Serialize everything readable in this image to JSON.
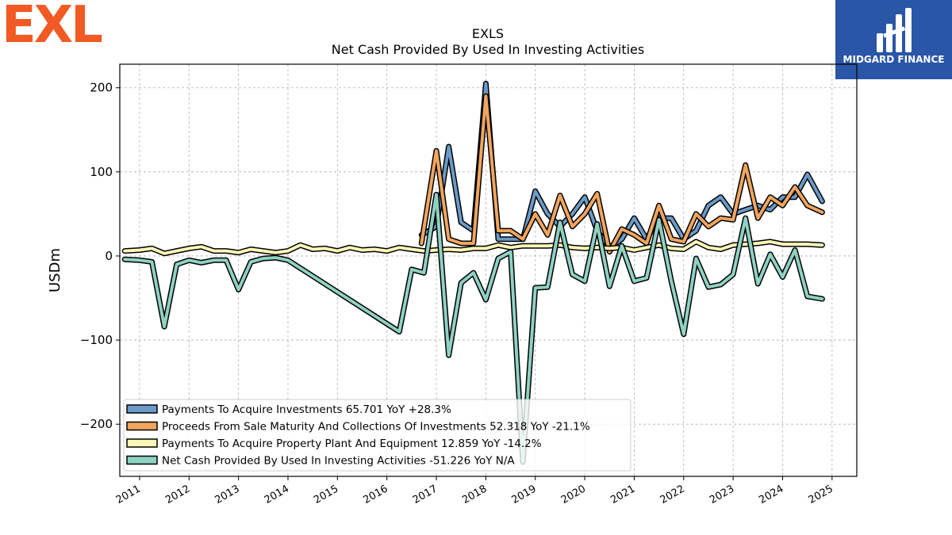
{
  "brand": {
    "left_logo_text": "EXL",
    "right_logo_text": "MIDGARD FINANCE",
    "left_logo_color": "#f15a22",
    "right_logo_bg": "#2a56a8"
  },
  "chart_data": {
    "type": "line",
    "title": "EXLS",
    "subtitle": "Net Cash Provided By Used In Investing Activities",
    "ylabel": "USDm",
    "xlabel": "",
    "ylim": [
      -262,
      228
    ],
    "xlim": [
      2010.6,
      2025.5
    ],
    "yticks": [
      200,
      100,
      0,
      -100,
      -200
    ],
    "ytick_labels": [
      "200",
      "100",
      "0",
      "−100",
      "−200"
    ],
    "xticks": [
      2011,
      2012,
      2013,
      2014,
      2015,
      2016,
      2017,
      2018,
      2019,
      2020,
      2021,
      2022,
      2023,
      2024,
      2025
    ],
    "xtick_labels": [
      "2011",
      "2012",
      "2013",
      "2014",
      "2015",
      "2016",
      "2017",
      "2018",
      "2019",
      "2020",
      "2021",
      "2022",
      "2023",
      "2024",
      "2025"
    ],
    "grid": true,
    "legend_position": "lower-left",
    "series": [
      {
        "name": "Payments To Acquire Investments",
        "legend_label": "Payments To Acquire Investments  65.701 YoY +28.3%",
        "color": "#6a9ac7",
        "x": [
          2016.7,
          2017.0,
          2017.25,
          2017.5,
          2017.75,
          2018.0,
          2018.25,
          2018.5,
          2018.75,
          2019.0,
          2019.25,
          2019.5,
          2019.75,
          2020.0,
          2020.25,
          2020.5,
          2020.75,
          2021.0,
          2021.25,
          2021.5,
          2021.75,
          2022.0,
          2022.25,
          2022.5,
          2022.75,
          2023.0,
          2023.25,
          2023.5,
          2023.75,
          2024.0,
          2024.25,
          2024.5,
          2024.8
        ],
        "values": [
          25,
          35,
          130,
          40,
          30,
          205,
          20,
          20,
          20,
          77,
          50,
          35,
          50,
          70,
          30,
          10,
          20,
          45,
          20,
          45,
          45,
          20,
          30,
          60,
          70,
          50,
          55,
          60,
          55,
          70,
          70,
          97,
          65
        ]
      },
      {
        "name": "Proceeds From Sale Maturity And Collections Of Investments",
        "legend_label": "Proceeds From Sale Maturity And Collections Of Investments  52.318 YoY -21.1%",
        "color": "#f2a55f",
        "x": [
          2016.7,
          2017.0,
          2017.25,
          2017.5,
          2017.75,
          2018.0,
          2018.25,
          2018.5,
          2018.75,
          2019.0,
          2019.25,
          2019.5,
          2019.75,
          2020.0,
          2020.25,
          2020.5,
          2020.75,
          2021.0,
          2021.25,
          2021.5,
          2021.75,
          2022.0,
          2022.25,
          2022.5,
          2022.75,
          2023.0,
          2023.25,
          2023.5,
          2023.75,
          2024.0,
          2024.25,
          2024.5,
          2024.8
        ],
        "values": [
          15,
          125,
          20,
          15,
          15,
          190,
          30,
          30,
          20,
          50,
          25,
          72,
          35,
          50,
          74,
          5,
          32,
          25,
          15,
          60,
          20,
          17,
          50,
          35,
          45,
          43,
          108,
          45,
          70,
          60,
          82,
          60,
          52
        ]
      },
      {
        "name": "Payments To Acquire Property Plant And Equipment",
        "legend_label": "Payments To Acquire Property Plant And Equipment  12.859 YoY -14.2%",
        "color": "#fbf7b8",
        "x": [
          2010.7,
          2011.0,
          2011.25,
          2011.5,
          2011.75,
          2012.0,
          2012.25,
          2012.5,
          2012.75,
          2013.0,
          2013.25,
          2013.5,
          2013.75,
          2014.0,
          2014.25,
          2014.5,
          2014.75,
          2015.0,
          2015.25,
          2015.5,
          2015.75,
          2016.0,
          2016.25,
          2016.5,
          2016.75,
          2017.0,
          2017.25,
          2017.5,
          2017.75,
          2018.0,
          2018.25,
          2018.5,
          2018.75,
          2019.0,
          2019.25,
          2019.5,
          2019.75,
          2020.0,
          2020.25,
          2020.5,
          2020.75,
          2021.0,
          2021.25,
          2021.5,
          2021.75,
          2022.0,
          2022.25,
          2022.5,
          2022.75,
          2023.0,
          2023.25,
          2023.5,
          2023.75,
          2024.0,
          2024.25,
          2024.5,
          2024.8
        ],
        "values": [
          6,
          7,
          9,
          3,
          6,
          9,
          11,
          6,
          6,
          4,
          8,
          6,
          4,
          6,
          13,
          8,
          9,
          6,
          10,
          7,
          8,
          6,
          10,
          8,
          6,
          7,
          8,
          7,
          9,
          9,
          13,
          10,
          12,
          12,
          12,
          13,
          10,
          9,
          10,
          9,
          10,
          7,
          10,
          13,
          9,
          8,
          17,
          10,
          8,
          13,
          14,
          15,
          17,
          14,
          14,
          14,
          13
        ]
      },
      {
        "name": "Net Cash Provided By Used In Investing Activities",
        "legend_label": "Net Cash Provided By Used In Investing Activities  -51.226 YoY N/A",
        "color": "#8fd1c2",
        "x": [
          2010.7,
          2011.0,
          2011.25,
          2011.5,
          2011.75,
          2012.0,
          2012.25,
          2012.5,
          2012.75,
          2013.0,
          2013.25,
          2013.5,
          2013.75,
          2014.0,
          2016.25,
          2016.5,
          2016.75,
          2017.0,
          2017.25,
          2017.5,
          2017.75,
          2018.0,
          2018.25,
          2018.5,
          2018.75,
          2019.0,
          2019.25,
          2019.5,
          2019.75,
          2020.0,
          2020.25,
          2020.5,
          2020.75,
          2021.0,
          2021.25,
          2021.5,
          2021.75,
          2022.0,
          2022.25,
          2022.5,
          2022.75,
          2023.0,
          2023.25,
          2023.5,
          2023.75,
          2024.0,
          2024.25,
          2024.5,
          2024.8
        ],
        "values": [
          -4,
          -5,
          -7,
          -84,
          -10,
          -5,
          -8,
          -5,
          -5,
          -40,
          -7,
          -3,
          -2,
          -5,
          -90,
          -16,
          -20,
          73,
          -118,
          -32,
          -20,
          -52,
          -3,
          5,
          -245,
          -38,
          -37,
          40,
          -22,
          -30,
          38,
          -36,
          12,
          -30,
          -26,
          43,
          -30,
          -93,
          -3,
          -37,
          -34,
          -22,
          45,
          -33,
          2,
          -25,
          7,
          -48,
          -51
        ]
      }
    ]
  }
}
